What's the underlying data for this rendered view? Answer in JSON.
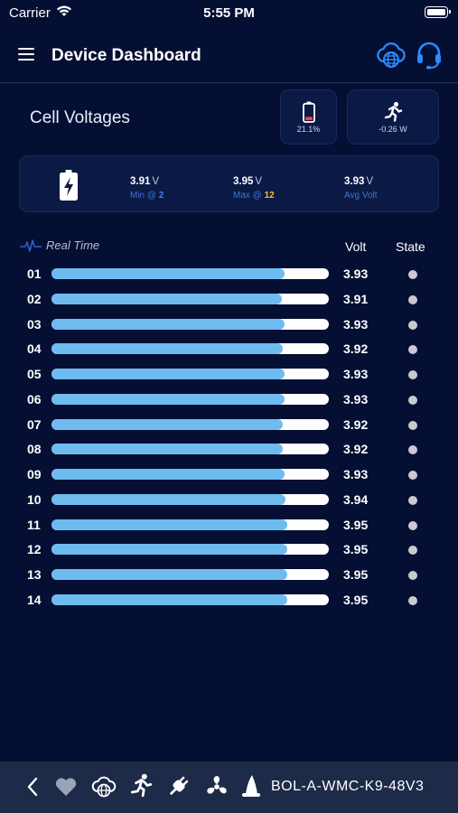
{
  "status_bar": {
    "carrier": "Carrier",
    "time": "5:55 PM"
  },
  "header": {
    "title": "Device Dashboard",
    "icons": [
      "menu-icon",
      "cloud-globe-icon",
      "headset-icon"
    ],
    "accent_color": "#2a8cff"
  },
  "section": {
    "title": "Cell Voltages"
  },
  "battery_card": {
    "icon": "battery-low-icon",
    "value": "21.1%",
    "level": 0.211
  },
  "power_card": {
    "icon": "running-person-icon",
    "value": "-0.26 W"
  },
  "summary": {
    "icon": "battery-charging-icon",
    "min": {
      "value": "3.91",
      "unit": "V",
      "label": "Min @",
      "cell": "2"
    },
    "max": {
      "value": "3.95",
      "unit": "V",
      "label": "Max @",
      "cell": "12"
    },
    "avg": {
      "value": "3.93",
      "unit": "V",
      "label": "Avg Volt"
    }
  },
  "list_header": {
    "realtime": "Real Time",
    "volt": "Volt",
    "state": "State"
  },
  "cells": [
    {
      "num": "01",
      "volt": "3.93",
      "fill": 0.84
    },
    {
      "num": "02",
      "volt": "3.91",
      "fill": 0.83
    },
    {
      "num": "03",
      "volt": "3.93",
      "fill": 0.84
    },
    {
      "num": "04",
      "volt": "3.92",
      "fill": 0.835
    },
    {
      "num": "05",
      "volt": "3.93",
      "fill": 0.84
    },
    {
      "num": "06",
      "volt": "3.93",
      "fill": 0.84
    },
    {
      "num": "07",
      "volt": "3.92",
      "fill": 0.835
    },
    {
      "num": "08",
      "volt": "3.92",
      "fill": 0.835
    },
    {
      "num": "09",
      "volt": "3.93",
      "fill": 0.84
    },
    {
      "num": "10",
      "volt": "3.94",
      "fill": 0.845
    },
    {
      "num": "11",
      "volt": "3.95",
      "fill": 0.85
    },
    {
      "num": "12",
      "volt": "3.95",
      "fill": 0.85
    },
    {
      "num": "13",
      "volt": "3.95",
      "fill": 0.85
    },
    {
      "num": "14",
      "volt": "3.95",
      "fill": 0.85
    }
  ],
  "bottom_bar": {
    "icons": [
      "back-chevron-icon",
      "heart-icon",
      "cloud-globe-icon",
      "running-person-icon",
      "plug-icon",
      "fan-icon",
      "wizard-hat-icon"
    ],
    "device_id": "BOL-A-WMC-K9-48V3"
  }
}
